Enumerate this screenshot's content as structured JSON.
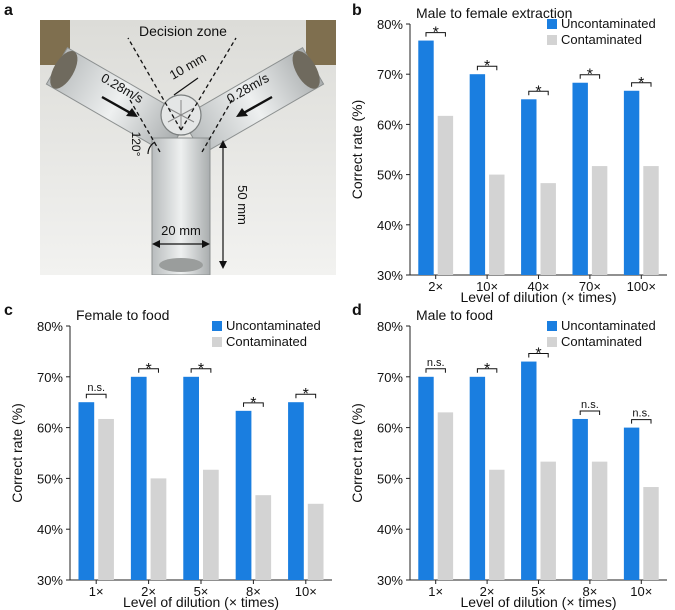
{
  "panels": {
    "a": "a",
    "b": "b",
    "c": "c",
    "d": "d"
  },
  "photo": {
    "decision_zone": "Decision zone",
    "dim_10": "10 mm",
    "speed_left": "0.28m/s",
    "speed_right": "0.28m/s",
    "angle": "120°",
    "dim_50": "50 mm",
    "dim_20": "20 mm"
  },
  "colors": {
    "uncontaminated": "#1a7ee0",
    "contaminated": "#d3d3d3"
  },
  "chart_data": [
    {
      "type": "bar",
      "title": "Male to female extraction",
      "xlabel": "Level of dilution (× times)",
      "ylabel": "Correct rate (%)",
      "categories": [
        "2×",
        "10×",
        "40×",
        "70×",
        "100×"
      ],
      "series": [
        {
          "name": "Uncontaminated",
          "values": [
            76.7,
            70.0,
            65.0,
            68.3,
            66.7
          ]
        },
        {
          "name": "Contaminated",
          "values": [
            61.7,
            50.0,
            48.3,
            51.7,
            51.7
          ]
        }
      ],
      "significance": [
        "*",
        "*",
        "*",
        "*",
        "*"
      ],
      "ylim": [
        30,
        80
      ],
      "yticks": [
        "30%",
        "40%",
        "50%",
        "60%",
        "70%",
        "80%"
      ],
      "legend": "top-right",
      "grid": false
    },
    {
      "type": "bar",
      "title": "Female to food",
      "xlabel": "Level of dilution (× times)",
      "ylabel": "Correct rate (%)",
      "categories": [
        "1×",
        "2×",
        "5×",
        "8×",
        "10×"
      ],
      "series": [
        {
          "name": "Uncontaminated",
          "values": [
            65.0,
            70.0,
            70.0,
            63.3,
            65.0
          ]
        },
        {
          "name": "Contaminated",
          "values": [
            61.7,
            50.0,
            51.7,
            46.7,
            45.0
          ]
        }
      ],
      "significance": [
        "n.s.",
        "*",
        "*",
        "*",
        "*"
      ],
      "ylim": [
        30,
        80
      ],
      "yticks": [
        "30%",
        "40%",
        "50%",
        "60%",
        "70%",
        "80%"
      ],
      "legend": "top-right",
      "grid": false
    },
    {
      "type": "bar",
      "title": "Male to food",
      "xlabel": "Level of dilution (× times)",
      "ylabel": "Correct rate (%)",
      "categories": [
        "1×",
        "2×",
        "5×",
        "8×",
        "10×"
      ],
      "series": [
        {
          "name": "Uncontaminated",
          "values": [
            70.0,
            70.0,
            73.0,
            61.7,
            60.0
          ]
        },
        {
          "name": "Contaminated",
          "values": [
            63.0,
            51.7,
            53.3,
            53.3,
            48.3
          ]
        }
      ],
      "significance": [
        "n.s.",
        "*",
        "*",
        "n.s.",
        "n.s."
      ],
      "ylim": [
        30,
        80
      ],
      "yticks": [
        "30%",
        "40%",
        "50%",
        "60%",
        "70%",
        "80%"
      ],
      "legend": "top-right",
      "grid": false
    }
  ]
}
